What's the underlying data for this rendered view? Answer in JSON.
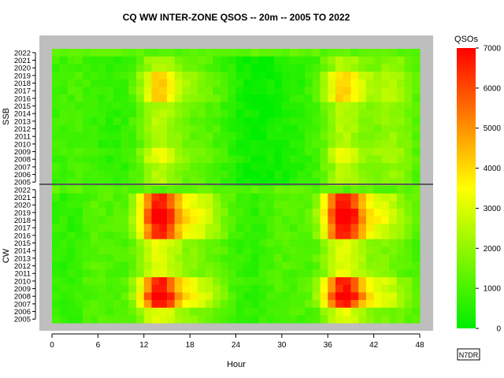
{
  "chart_data": {
    "type": "heatmap",
    "title": "CQ WW INTER-ZONE QSOS -- 20m -- 2005 TO 2022",
    "xlabel": "Hour",
    "legend_title": "QSOs",
    "credit": "N7DR",
    "xlim": [
      0,
      48
    ],
    "x_ticks": [
      "0",
      "6",
      "12",
      "18",
      "24",
      "30",
      "36",
      "42",
      "48"
    ],
    "colorbar_ticks": [
      "0",
      "1000",
      "2000",
      "3000",
      "4000",
      "5000",
      "6000",
      "7000"
    ],
    "colorbar_range": [
      0,
      7000
    ],
    "colorscale": [
      "#00ee00",
      "#ffff00",
      "#ff0000"
    ],
    "panels": [
      {
        "label": "SSB",
        "years": [
          "2022",
          "2021",
          "2020",
          "2019",
          "2018",
          "2017",
          "2016",
          "2015",
          "2014",
          "2013",
          "2012",
          "2011",
          "2010",
          "2009",
          "2008",
          "2007",
          "2006",
          "2005"
        ]
      },
      {
        "label": "CW",
        "years": [
          "2022",
          "2021",
          "2020",
          "2019",
          "2018",
          "2017",
          "2016",
          "2015",
          "2014",
          "2013",
          "2012",
          "2011",
          "2010",
          "2009",
          "2008",
          "2007",
          "2006",
          "2005"
        ]
      }
    ]
  }
}
